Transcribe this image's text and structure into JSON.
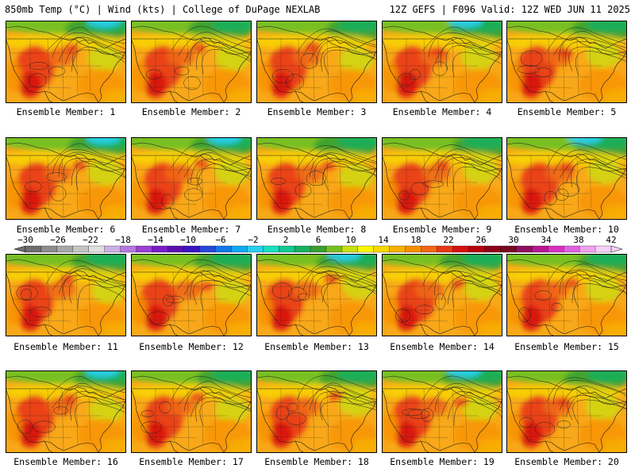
{
  "header": {
    "left_title": "850mb Temp (°C) | Wind (kts) | College of DuPage NEXLAB",
    "right_title": "12Z GEFS | F096 Valid: 12Z WED JUN 11 2025"
  },
  "members": [
    {
      "label": "Ensemble Member: 1"
    },
    {
      "label": "Ensemble Member: 2"
    },
    {
      "label": "Ensemble Member: 3"
    },
    {
      "label": "Ensemble Member: 4"
    },
    {
      "label": "Ensemble Member: 5"
    },
    {
      "label": "Ensemble Member: 6"
    },
    {
      "label": "Ensemble Member: 7"
    },
    {
      "label": "Ensemble Member: 8"
    },
    {
      "label": "Ensemble Member: 9"
    },
    {
      "label": "Ensemble Member: 10"
    },
    {
      "label": "Ensemble Member: 11"
    },
    {
      "label": "Ensemble Member: 12"
    },
    {
      "label": "Ensemble Member: 13"
    },
    {
      "label": "Ensemble Member: 14"
    },
    {
      "label": "Ensemble Member: 15"
    },
    {
      "label": "Ensemble Member: 16"
    },
    {
      "label": "Ensemble Member: 17"
    },
    {
      "label": "Ensemble Member: 18"
    },
    {
      "label": "Ensemble Member: 19"
    },
    {
      "label": "Ensemble Member: 20"
    }
  ],
  "colorbar": {
    "labels": [
      "−30",
      "−26",
      "−22",
      "−18",
      "−14",
      "−10",
      "−6",
      "−2",
      "2",
      "6",
      "10",
      "14",
      "18",
      "22",
      "26",
      "30",
      "34",
      "38",
      "42"
    ],
    "colors": [
      "#6e6e6e",
      "#8c8c8c",
      "#a8a8a8",
      "#c4c4c4",
      "#e0e0e0",
      "#ccb0e8",
      "#b478e0",
      "#9b3fd6",
      "#7a1cc8",
      "#5a10b0",
      "#3a14c0",
      "#2448d8",
      "#1478e8",
      "#10a8f0",
      "#28d0f0",
      "#18e0c0",
      "#10c890",
      "#18b060",
      "#38a030",
      "#78c020",
      "#c8e010",
      "#f8f800",
      "#f8d800",
      "#f8b000",
      "#f89000",
      "#f06818",
      "#e83818",
      "#d81010",
      "#b80010",
      "#900018",
      "#780820",
      "#901060",
      "#b81890",
      "#d830c0",
      "#e060e0",
      "#f0a0f0",
      "#f8d0f8"
    ]
  }
}
